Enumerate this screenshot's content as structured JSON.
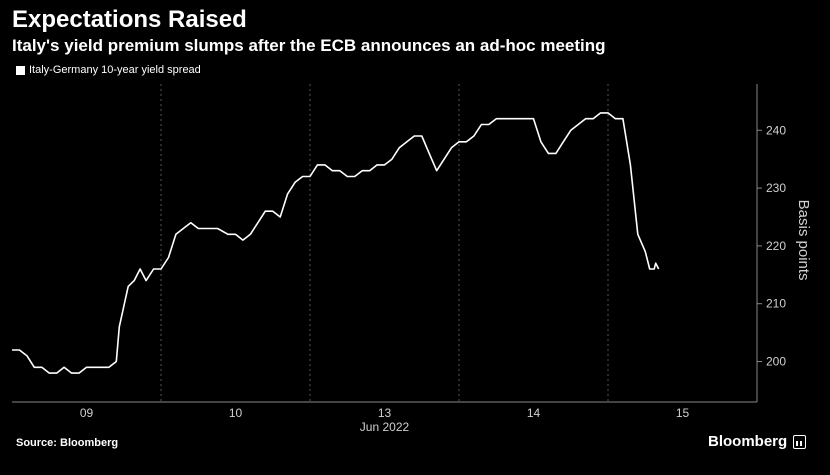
{
  "header": {
    "title": "Expectations Raised",
    "subtitle": "Italy's yield premium slumps after the ECB announces an ad-hoc meeting"
  },
  "legend": {
    "label": "Italy-Germany 10-year yield spread",
    "color": "#ffffff"
  },
  "footer": {
    "source": "Source: Bloomberg",
    "brand": "Bloomberg"
  },
  "chart_data": {
    "type": "line",
    "title": "Expectations Raised",
    "subtitle": "Italy's yield premium slumps after the ECB announces an ad-hoc meeting",
    "ylabel": "Basis points",
    "xlabel": "Jun 2022",
    "x_categories": [
      "09",
      "10",
      "13",
      "14",
      "15"
    ],
    "x_group_label": "Jun 2022",
    "ylim": [
      193,
      248
    ],
    "yticks": [
      200,
      210,
      220,
      230,
      240
    ],
    "xlim": [
      0,
      5
    ],
    "grid": true,
    "legend_position": "top-left",
    "series": [
      {
        "name": "Italy-Germany 10-year yield spread",
        "color": "#ffffff",
        "x": [
          0.0,
          0.05,
          0.1,
          0.15,
          0.2,
          0.25,
          0.3,
          0.35,
          0.4,
          0.45,
          0.5,
          0.55,
          0.6,
          0.65,
          0.7,
          0.72,
          0.78,
          0.82,
          0.86,
          0.9,
          0.95,
          1.0,
          1.05,
          1.1,
          1.15,
          1.2,
          1.25,
          1.3,
          1.35,
          1.38,
          1.45,
          1.5,
          1.55,
          1.6,
          1.65,
          1.7,
          1.75,
          1.8,
          1.85,
          1.9,
          1.95,
          2.0,
          2.05,
          2.1,
          2.15,
          2.2,
          2.25,
          2.3,
          2.35,
          2.4,
          2.45,
          2.5,
          2.55,
          2.6,
          2.65,
          2.7,
          2.75,
          2.8,
          2.85,
          2.9,
          2.95,
          3.0,
          3.05,
          3.1,
          3.15,
          3.2,
          3.25,
          3.3,
          3.35,
          3.4,
          3.45,
          3.5,
          3.55,
          3.6,
          3.65,
          3.7,
          3.75,
          3.8,
          3.85,
          3.9,
          3.95,
          4.0,
          4.05,
          4.1,
          4.15,
          4.2,
          4.25,
          4.28,
          4.3,
          4.31,
          4.32,
          4.34
        ],
        "values": [
          202,
          202,
          201,
          199,
          199,
          198,
          198,
          199,
          198,
          198,
          199,
          199,
          199,
          199,
          200,
          206,
          213,
          214,
          216,
          214,
          216,
          216,
          218,
          222,
          223,
          224,
          223,
          223,
          223,
          223,
          222,
          222,
          221,
          222,
          224,
          226,
          226,
          225,
          229,
          231,
          232,
          232,
          234,
          234,
          233,
          233,
          232,
          232,
          233,
          233,
          234,
          234,
          235,
          237,
          238,
          239,
          239,
          236,
          233,
          235,
          237,
          238,
          238,
          239,
          241,
          241,
          242,
          242,
          242,
          242,
          242,
          242,
          238,
          236,
          236,
          238,
          240,
          241,
          242,
          242,
          243,
          243,
          242,
          242,
          234,
          222,
          219,
          216,
          216,
          216,
          217,
          216
        ]
      }
    ]
  }
}
